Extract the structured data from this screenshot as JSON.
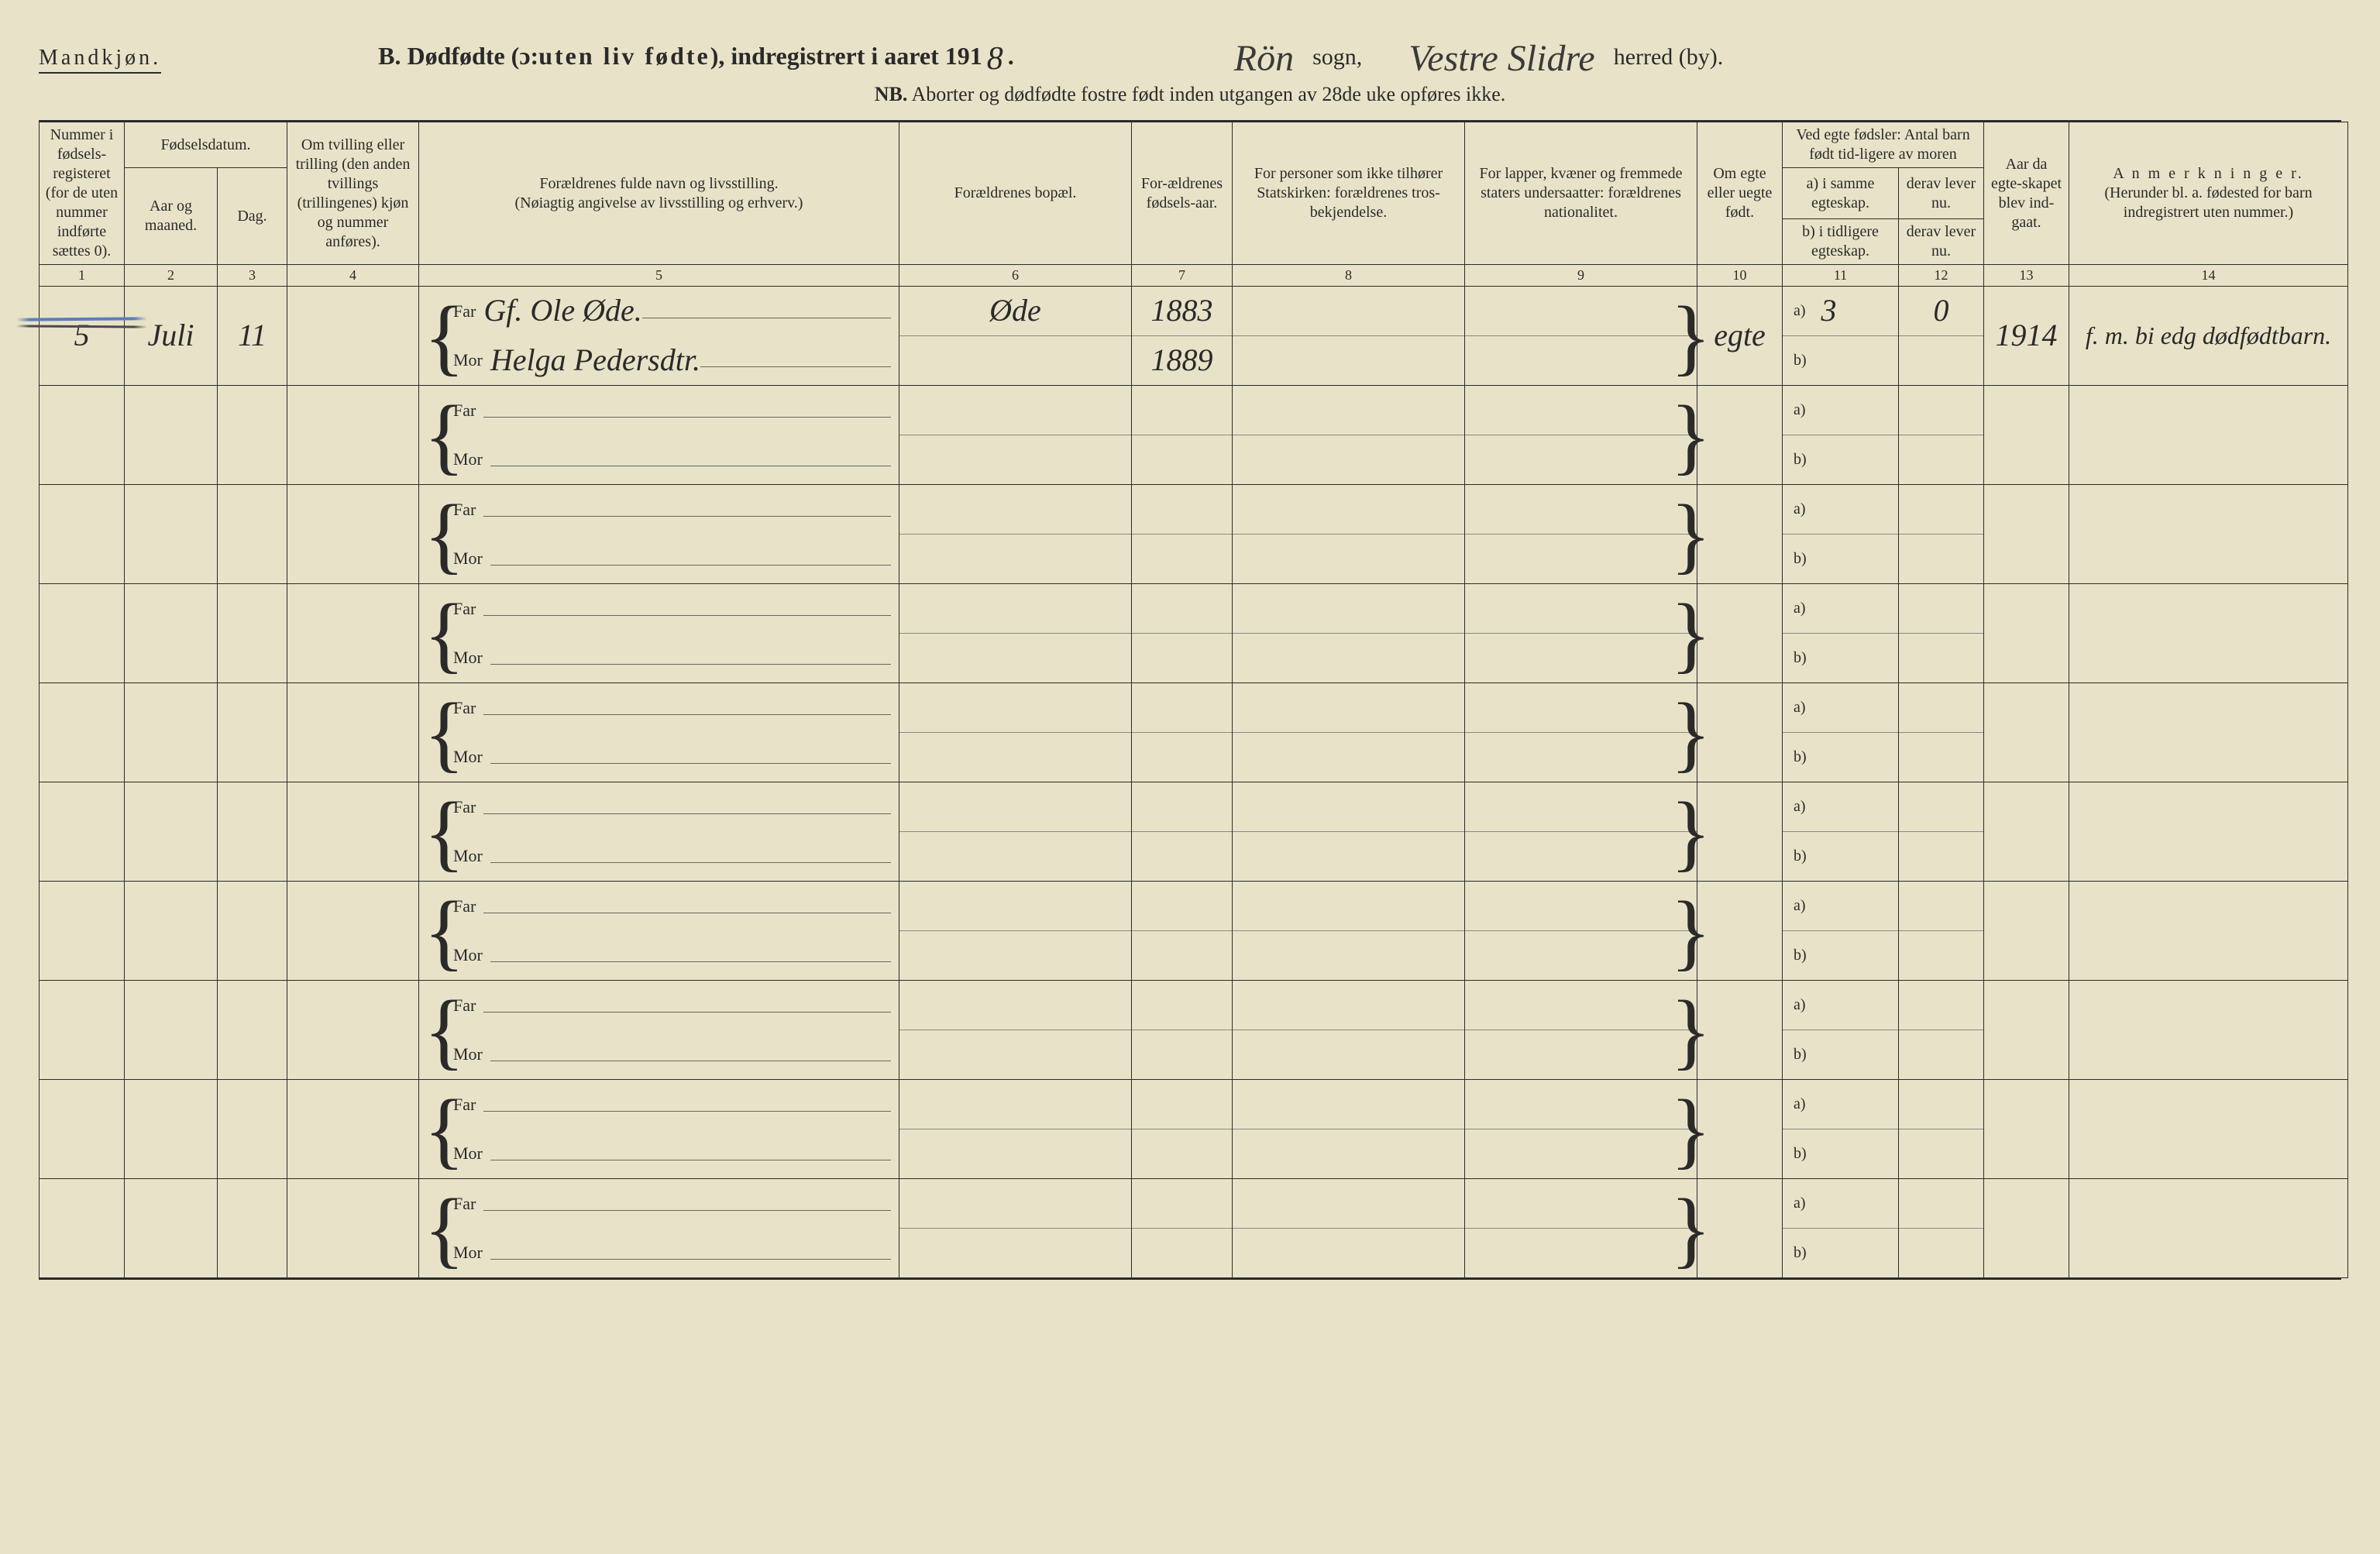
{
  "header": {
    "gender": "Mandkjøn.",
    "title_prefix": "B. Dødfødte (ɔ: ",
    "title_spaced": "uten liv fødte",
    "title_mid": "), indregistrert i aaret 191",
    "year_digit": "8",
    "title_period": ".",
    "sogn_hand": "Rön",
    "sogn_label": "sogn,",
    "herred_hand": "Vestre Slidre",
    "herred_label": "herred (by).",
    "nb_prefix": "NB.",
    "nb_text": "Aborter og dødfødte fostre født inden utgangen av 28de uke opføres ikke."
  },
  "columns": {
    "c1": "Nummer i fødsels-registeret (for de uten nummer indførte sættes 0).",
    "c23_top": "Fødselsdatum.",
    "c2": "Aar og maaned.",
    "c3": "Dag.",
    "c4": "Om tvilling eller trilling (den anden tvillings (trillingenes) kjøn og nummer anføres).",
    "c5_top": "Forældrenes fulde navn og livsstilling.",
    "c5_sub": "(Nøiagtig angivelse av livsstilling og erhverv.)",
    "c6": "Forældrenes bopæl.",
    "c7": "For-ældrenes fødsels-aar.",
    "c8": "For personer som ikke tilhører Statskirken: forældrenes tros-bekjendelse.",
    "c9": "For lapper, kvæner og fremmede staters undersaatter: forældrenes nationalitet.",
    "c10": "Om egte eller uegte født.",
    "c1112_top": "Ved egte fødsler: Antal barn født tid-ligere av moren",
    "c11a": "a) i samme egteskap.",
    "c11b": "b) i tidligere egteskap.",
    "c12a": "derav lever nu.",
    "c12b": "derav lever nu.",
    "c13": "Aar da egte-skapet blev ind-gaat.",
    "c14_top": "A n m e r k n i n g e r.",
    "c14_sub": "(Herunder bl. a. fødested for barn indregistrert uten nummer.)",
    "far": "Far",
    "mor": "Mor",
    "a": "a)",
    "b": "b)",
    "nums": [
      "1",
      "2",
      "3",
      "4",
      "5",
      "6",
      "7",
      "8",
      "9",
      "10",
      "11",
      "12",
      "13",
      "14"
    ]
  },
  "record": {
    "num": "5",
    "aar_maaned": "Juli",
    "dag": "11",
    "tvilling": "",
    "far_name": "Gf.   Ole Øde.",
    "mor_name": "Helga Pedersdtr.",
    "bopael": "Øde",
    "far_aar": "1883",
    "mor_aar": "1889",
    "egte": "egte",
    "c11a_val": "3",
    "c12a_val": "0",
    "c13_val": "1914",
    "anm": "f. m. bi edg dødfødtbarn."
  },
  "blank_rows": 9
}
